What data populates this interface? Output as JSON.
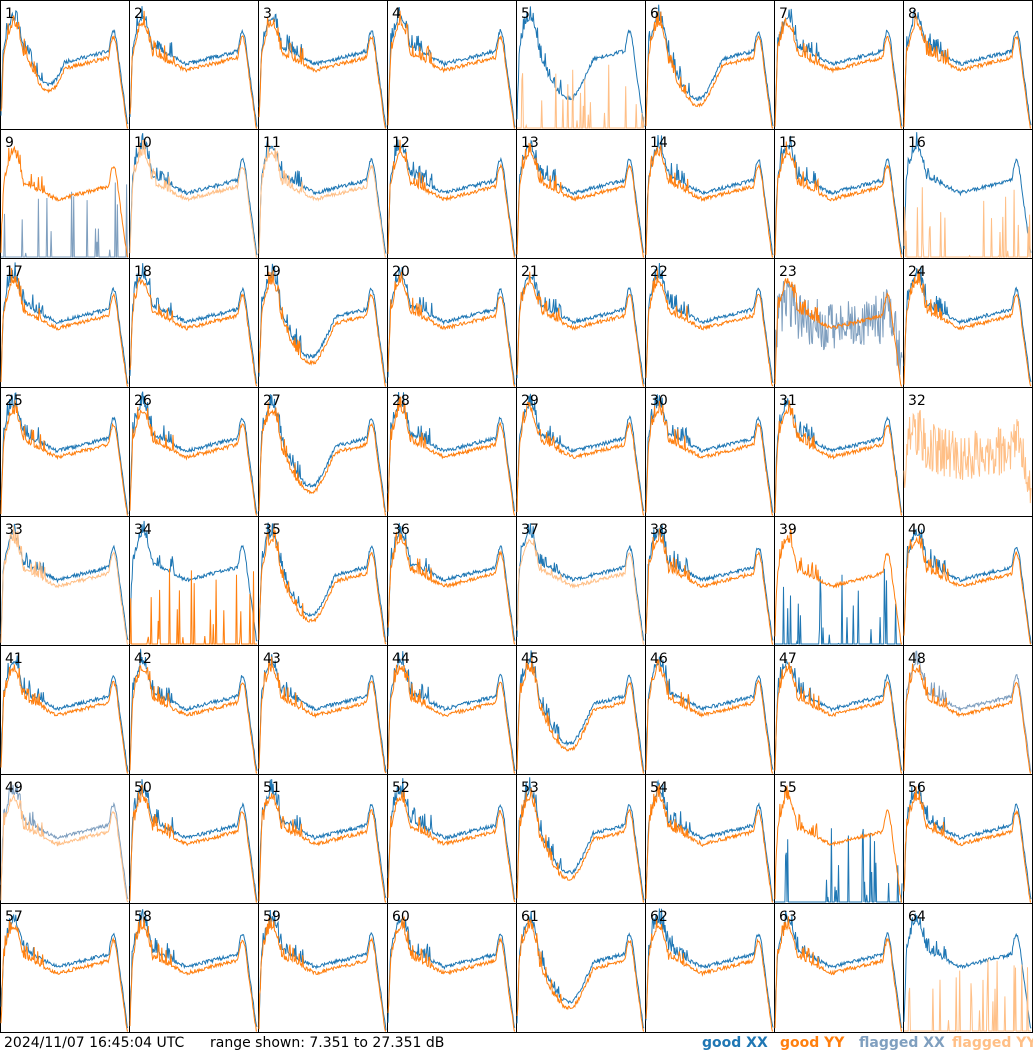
{
  "timestamp": "2024/11/07 16:45:04 UTC",
  "range_text": "range shown: 7.351 to 27.351 dB",
  "legend": {
    "good_xx": "good XX",
    "good_yy": "good YY",
    "flagged_xx": "flagged XX",
    "flagged_yy": "flagged YY"
  },
  "colors": {
    "good_xx": "#1f77b4",
    "good_yy": "#ff7f0e",
    "flagged_xx": "#7f9fbf",
    "flagged_yy": "#ffbf86",
    "border": "#000000"
  },
  "chart_data": {
    "type": "line",
    "grid_rows": 8,
    "grid_cols": 8,
    "ylim_db": [
      7.351,
      27.351
    ],
    "panels": [
      {
        "id": "1",
        "xx": "good",
        "yy": "good",
        "shape": "hump"
      },
      {
        "id": "2",
        "xx": "good",
        "yy": "good",
        "shape": "normal"
      },
      {
        "id": "3",
        "xx": "good",
        "yy": "good",
        "shape": "normal"
      },
      {
        "id": "4",
        "xx": "good",
        "yy": "good",
        "shape": "normal"
      },
      {
        "id": "5",
        "xx": "good",
        "yy": "flagged_low",
        "shape": "dip"
      },
      {
        "id": "6",
        "xx": "good",
        "yy": "good",
        "shape": "dip"
      },
      {
        "id": "7",
        "xx": "good",
        "yy": "good",
        "shape": "normal"
      },
      {
        "id": "8",
        "xx": "good",
        "yy": "good",
        "shape": "normal"
      },
      {
        "id": "9",
        "xx": "flagged_low",
        "yy": "good",
        "shape": "normal"
      },
      {
        "id": "10",
        "xx": "good",
        "yy": "flagged",
        "shape": "normal"
      },
      {
        "id": "11",
        "xx": "good",
        "yy": "flagged",
        "shape": "normal"
      },
      {
        "id": "12",
        "xx": "good",
        "yy": "good",
        "shape": "normal"
      },
      {
        "id": "13",
        "xx": "good",
        "yy": "good",
        "shape": "normal"
      },
      {
        "id": "14",
        "xx": "good",
        "yy": "good",
        "shape": "normal"
      },
      {
        "id": "15",
        "xx": "good",
        "yy": "good",
        "shape": "normal"
      },
      {
        "id": "16",
        "xx": "good",
        "yy": "flagged_low",
        "shape": "normal"
      },
      {
        "id": "17",
        "xx": "good",
        "yy": "good",
        "shape": "normal"
      },
      {
        "id": "18",
        "xx": "good",
        "yy": "good",
        "shape": "normal"
      },
      {
        "id": "19",
        "xx": "good",
        "yy": "good",
        "shape": "dip"
      },
      {
        "id": "20",
        "xx": "good",
        "yy": "good",
        "shape": "normal"
      },
      {
        "id": "21",
        "xx": "good",
        "yy": "good",
        "shape": "normal"
      },
      {
        "id": "22",
        "xx": "good",
        "yy": "good",
        "shape": "normal"
      },
      {
        "id": "23",
        "xx": "flagged_noisy",
        "yy": "good",
        "shape": "normal"
      },
      {
        "id": "24",
        "xx": "good",
        "yy": "good",
        "shape": "normal"
      },
      {
        "id": "25",
        "xx": "good",
        "yy": "good",
        "shape": "normal"
      },
      {
        "id": "26",
        "xx": "good",
        "yy": "good",
        "shape": "normal"
      },
      {
        "id": "27",
        "xx": "good",
        "yy": "good",
        "shape": "dip"
      },
      {
        "id": "28",
        "xx": "good",
        "yy": "good",
        "shape": "normal"
      },
      {
        "id": "29",
        "xx": "good",
        "yy": "good",
        "shape": "normal"
      },
      {
        "id": "30",
        "xx": "good",
        "yy": "good",
        "shape": "normal"
      },
      {
        "id": "31",
        "xx": "good",
        "yy": "good",
        "shape": "normal"
      },
      {
        "id": "32",
        "xx": "none",
        "yy": "flagged_noisy",
        "shape": "normal"
      },
      {
        "id": "33",
        "xx": "good",
        "yy": "flagged",
        "shape": "normal"
      },
      {
        "id": "34",
        "xx": "good",
        "yy": "good_low",
        "shape": "normal"
      },
      {
        "id": "35",
        "xx": "good",
        "yy": "good",
        "shape": "dip"
      },
      {
        "id": "36",
        "xx": "good",
        "yy": "good",
        "shape": "normal"
      },
      {
        "id": "37",
        "xx": "good",
        "yy": "flagged",
        "shape": "normal"
      },
      {
        "id": "38",
        "xx": "good",
        "yy": "good",
        "shape": "normal"
      },
      {
        "id": "39",
        "xx": "good_low",
        "yy": "good",
        "shape": "normal"
      },
      {
        "id": "40",
        "xx": "good",
        "yy": "good",
        "shape": "normal"
      },
      {
        "id": "41",
        "xx": "good",
        "yy": "good",
        "shape": "normal"
      },
      {
        "id": "42",
        "xx": "good",
        "yy": "good",
        "shape": "normal"
      },
      {
        "id": "43",
        "xx": "good",
        "yy": "good",
        "shape": "normal"
      },
      {
        "id": "44",
        "xx": "good",
        "yy": "good",
        "shape": "normal"
      },
      {
        "id": "45",
        "xx": "good",
        "yy": "good",
        "shape": "dip"
      },
      {
        "id": "46",
        "xx": "good",
        "yy": "good",
        "shape": "normal"
      },
      {
        "id": "47",
        "xx": "good",
        "yy": "good",
        "shape": "normal"
      },
      {
        "id": "48",
        "xx": "flagged",
        "yy": "good",
        "shape": "normal"
      },
      {
        "id": "49",
        "xx": "flagged",
        "yy": "flagged",
        "shape": "normal"
      },
      {
        "id": "50",
        "xx": "good",
        "yy": "good",
        "shape": "normal"
      },
      {
        "id": "51",
        "xx": "good",
        "yy": "good",
        "shape": "normal"
      },
      {
        "id": "52",
        "xx": "good",
        "yy": "good",
        "shape": "normal"
      },
      {
        "id": "53",
        "xx": "good",
        "yy": "good",
        "shape": "dip"
      },
      {
        "id": "54",
        "xx": "good",
        "yy": "good",
        "shape": "normal"
      },
      {
        "id": "55",
        "xx": "good_low",
        "yy": "good",
        "shape": "normal"
      },
      {
        "id": "56",
        "xx": "good",
        "yy": "good",
        "shape": "normal"
      },
      {
        "id": "57",
        "xx": "good",
        "yy": "good",
        "shape": "normal"
      },
      {
        "id": "58",
        "xx": "good",
        "yy": "good",
        "shape": "normal"
      },
      {
        "id": "59",
        "xx": "good",
        "yy": "good",
        "shape": "normal"
      },
      {
        "id": "60",
        "xx": "good",
        "yy": "good",
        "shape": "normal"
      },
      {
        "id": "61",
        "xx": "good",
        "yy": "good",
        "shape": "dip"
      },
      {
        "id": "62",
        "xx": "good",
        "yy": "good",
        "shape": "normal"
      },
      {
        "id": "63",
        "xx": "good",
        "yy": "good",
        "shape": "normal"
      },
      {
        "id": "64",
        "xx": "good",
        "yy": "flagged_low",
        "shape": "normal"
      }
    ]
  }
}
